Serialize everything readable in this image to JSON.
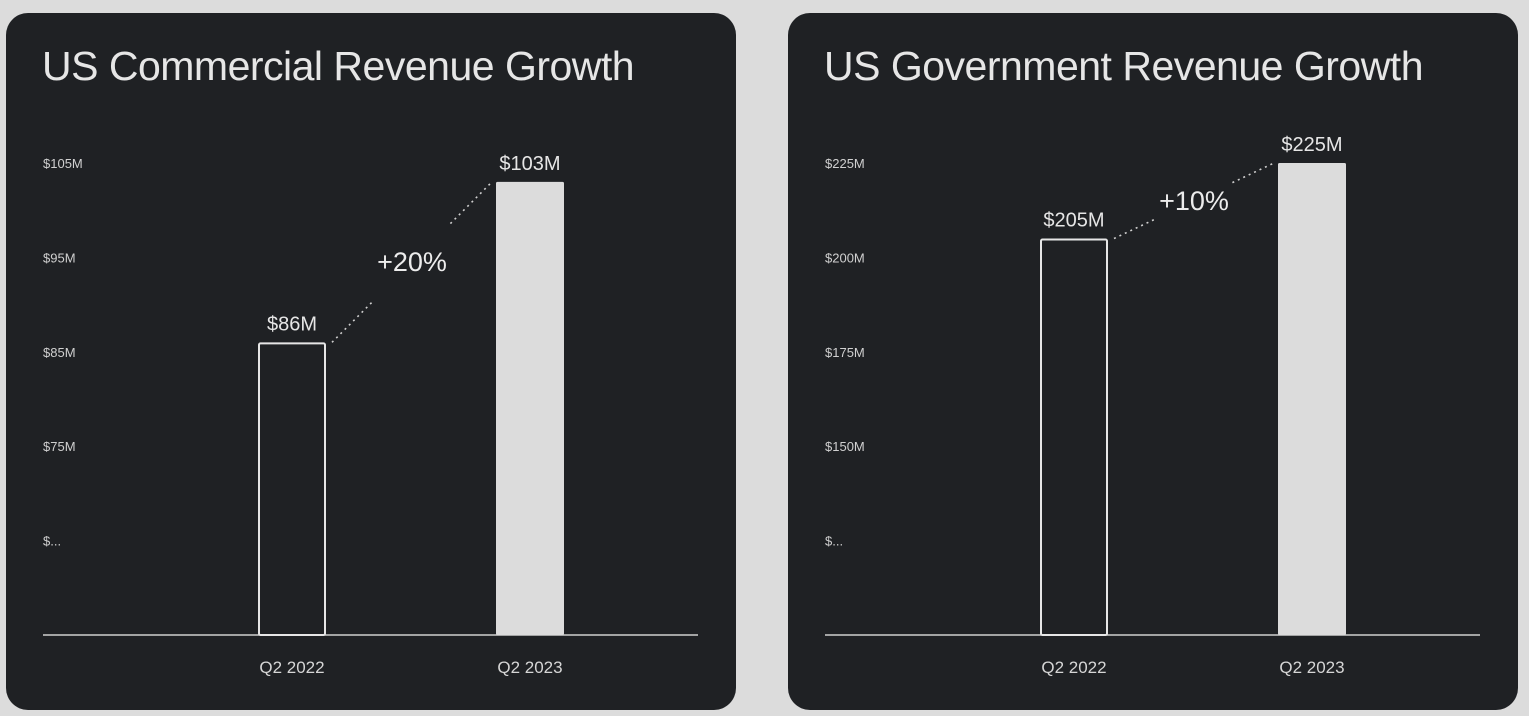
{
  "chart_data": [
    {
      "type": "bar",
      "title": "US Commercial Revenue Growth",
      "categories": [
        "Q2 2022",
        "Q2 2023"
      ],
      "values": [
        86,
        103
      ],
      "value_labels": [
        "$86M",
        "$103M"
      ],
      "change_label": "+20%",
      "yticks": [
        {
          "value": 105,
          "label": "$105M"
        },
        {
          "value": 95,
          "label": "$95M"
        },
        {
          "value": 85,
          "label": "$85M"
        },
        {
          "value": 75,
          "label": "$75M"
        },
        {
          "value": 65,
          "label": "$..."
        }
      ],
      "ylim": [
        55,
        105
      ],
      "bar_styles": [
        "outline",
        "filled"
      ],
      "grid": false,
      "xlabel": "",
      "ylabel": ""
    },
    {
      "type": "bar",
      "title": "US Government Revenue Growth",
      "categories": [
        "Q2 2022",
        "Q2 2023"
      ],
      "values": [
        205,
        225
      ],
      "value_labels": [
        "$205M",
        "$225M"
      ],
      "change_label": "+10%",
      "yticks": [
        {
          "value": 225,
          "label": "$225M"
        },
        {
          "value": 200,
          "label": "$200M"
        },
        {
          "value": 175,
          "label": "$175M"
        },
        {
          "value": 150,
          "label": "$150M"
        },
        {
          "value": 125,
          "label": "$..."
        }
      ],
      "ylim": [
        100,
        225
      ],
      "bar_styles": [
        "outline",
        "filled"
      ],
      "grid": false,
      "xlabel": "",
      "ylabel": ""
    }
  ],
  "colors": {
    "page_background": "#dcdcdc",
    "panel_background": "#1f2124",
    "bar_fill": "#dcdcdc",
    "bar_outline": "#e6e6e6",
    "text": "#e6e6e6",
    "axis": "#cfcfcf"
  }
}
